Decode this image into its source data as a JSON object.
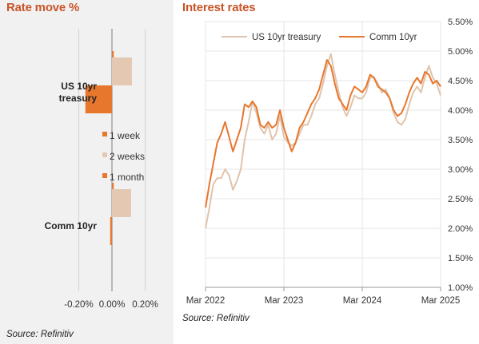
{
  "left_panel": {
    "title": "Rate move %",
    "source": "Source: Refinitiv"
  },
  "right_panel": {
    "title": "Interest rates",
    "source": "Source: Refinitiv"
  },
  "colors": {
    "orange": "#e8772e",
    "light": "#e4c8b2",
    "title": "#c8552a",
    "treasury_line": "#e0c4ad",
    "comm_line": "#e8772e"
  },
  "chart_data": [
    {
      "type": "bar",
      "orientation": "horizontal",
      "title": "Rate move %",
      "categories": [
        "US 10yr treasury",
        "Comm 10yr"
      ],
      "series": [
        {
          "name": "1 week",
          "values": [
            0.01,
            0.005
          ]
        },
        {
          "name": "2 weeks",
          "values": [
            0.12,
            0.115
          ]
        },
        {
          "name": "1 month",
          "values": [
            -0.16,
            -0.01
          ]
        }
      ],
      "xlim": [
        -0.26,
        0.26
      ],
      "xticks": [
        "-0.20%",
        "0.00%",
        "0.20%"
      ],
      "xtick_values": [
        -0.2,
        0,
        0.2
      ],
      "grid": true,
      "legend": "center"
    },
    {
      "type": "line",
      "title": "Interest rates",
      "x_ticks": [
        "Mar 2022",
        "Mar 2023",
        "Mar 2024",
        "Mar 2025"
      ],
      "x_tick_values": [
        2022.17,
        2023.17,
        2024.17,
        2025.17
      ],
      "xlim": [
        2022.17,
        2025.17
      ],
      "ylim": [
        1.0,
        5.5
      ],
      "y_ticks": [
        "1.00%",
        "1.50%",
        "2.00%",
        "2.50%",
        "3.00%",
        "3.50%",
        "4.00%",
        "4.50%",
        "5.00%",
        "5.50%"
      ],
      "y_tick_values": [
        1.0,
        1.5,
        2.0,
        2.5,
        3.0,
        3.5,
        4.0,
        4.5,
        5.0,
        5.5
      ],
      "legend": "top",
      "grid": true,
      "series": [
        {
          "name": "US 10yr treasury",
          "x": [
            2022.17,
            2022.22,
            2022.27,
            2022.32,
            2022.37,
            2022.42,
            2022.47,
            2022.52,
            2022.57,
            2022.62,
            2022.67,
            2022.72,
            2022.77,
            2022.82,
            2022.87,
            2022.92,
            2022.97,
            2023.02,
            2023.07,
            2023.12,
            2023.17,
            2023.22,
            2023.27,
            2023.32,
            2023.37,
            2023.42,
            2023.47,
            2023.52,
            2023.57,
            2023.62,
            2023.67,
            2023.72,
            2023.77,
            2023.82,
            2023.87,
            2023.92,
            2023.97,
            2024.02,
            2024.07,
            2024.12,
            2024.17,
            2024.22,
            2024.27,
            2024.32,
            2024.37,
            2024.42,
            2024.47,
            2024.52,
            2024.57,
            2024.62,
            2024.67,
            2024.72,
            2024.77,
            2024.82,
            2024.87,
            2024.92,
            2024.97,
            2025.02,
            2025.07,
            2025.12,
            2025.17
          ],
          "y": [
            2.0,
            2.35,
            2.75,
            2.85,
            2.85,
            3.0,
            2.9,
            2.65,
            2.8,
            3.0,
            3.5,
            3.8,
            4.15,
            3.95,
            3.7,
            3.6,
            3.75,
            3.5,
            3.6,
            3.9,
            3.55,
            3.45,
            3.4,
            3.45,
            3.6,
            3.75,
            3.75,
            3.9,
            4.1,
            4.2,
            4.45,
            4.75,
            4.95,
            4.6,
            4.3,
            4.05,
            3.9,
            4.05,
            4.25,
            4.2,
            4.2,
            4.3,
            4.55,
            4.55,
            4.45,
            4.3,
            4.35,
            4.2,
            3.95,
            3.8,
            3.75,
            3.85,
            4.1,
            4.3,
            4.4,
            4.3,
            4.55,
            4.75,
            4.55,
            4.45,
            4.25
          ]
        },
        {
          "name": "Comm 10yr",
          "x": [
            2022.17,
            2022.22,
            2022.27,
            2022.32,
            2022.37,
            2022.42,
            2022.47,
            2022.52,
            2022.57,
            2022.62,
            2022.67,
            2022.72,
            2022.77,
            2022.82,
            2022.87,
            2022.92,
            2022.97,
            2023.02,
            2023.07,
            2023.12,
            2023.17,
            2023.22,
            2023.27,
            2023.32,
            2023.37,
            2023.42,
            2023.47,
            2023.52,
            2023.57,
            2023.62,
            2023.67,
            2023.72,
            2023.77,
            2023.82,
            2023.87,
            2023.92,
            2023.97,
            2024.02,
            2024.07,
            2024.12,
            2024.17,
            2024.22,
            2024.27,
            2024.32,
            2024.37,
            2024.42,
            2024.47,
            2024.52,
            2024.57,
            2024.62,
            2024.67,
            2024.72,
            2024.77,
            2024.82,
            2024.87,
            2024.92,
            2024.97,
            2025.02,
            2025.07,
            2025.12,
            2025.17
          ],
          "y": [
            2.35,
            2.75,
            3.1,
            3.45,
            3.6,
            3.8,
            3.55,
            3.3,
            3.5,
            3.7,
            4.1,
            4.05,
            4.15,
            4.05,
            3.75,
            3.7,
            3.8,
            3.7,
            3.75,
            4.0,
            3.7,
            3.5,
            3.3,
            3.45,
            3.7,
            3.8,
            3.95,
            4.1,
            4.2,
            4.35,
            4.6,
            4.85,
            4.75,
            4.45,
            4.2,
            4.1,
            4.0,
            4.25,
            4.4,
            4.35,
            4.3,
            4.4,
            4.6,
            4.55,
            4.4,
            4.35,
            4.3,
            4.2,
            4.0,
            3.9,
            3.95,
            4.1,
            4.3,
            4.45,
            4.55,
            4.45,
            4.65,
            4.6,
            4.45,
            4.5,
            4.4
          ]
        }
      ]
    }
  ]
}
